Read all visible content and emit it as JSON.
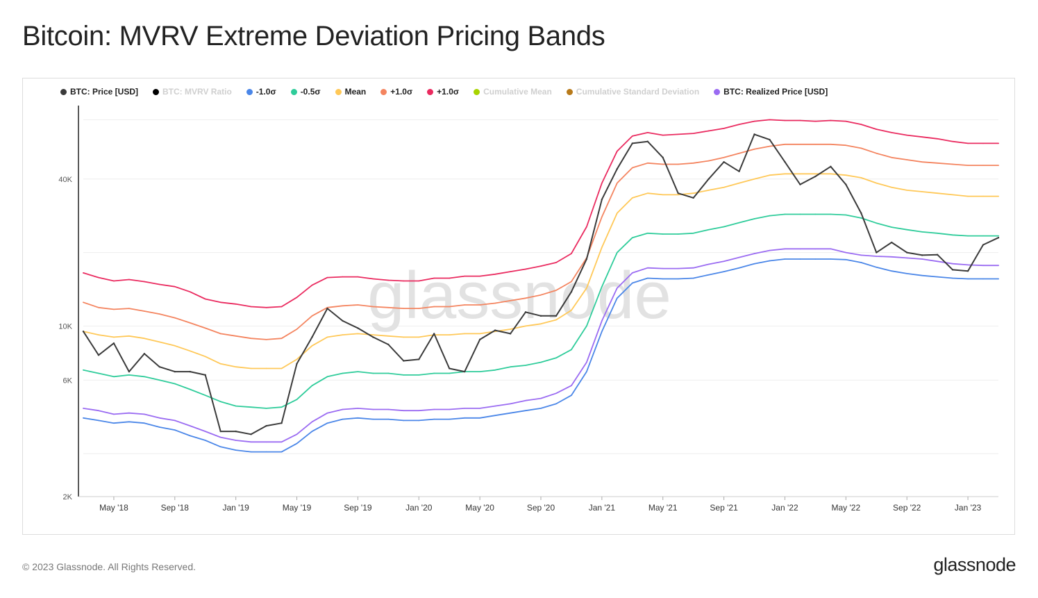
{
  "title": "Bitcoin: MVRV Extreme Deviation Pricing Bands",
  "footer": "© 2023 Glassnode. All Rights Reserved.",
  "brand": "glassnode",
  "watermark": "glassnode",
  "legend": [
    {
      "label": "BTC: Price [USD]",
      "color": "#3a3a3a",
      "active": true
    },
    {
      "label": "BTC: MVRV Ratio",
      "color": "#000000",
      "active": false
    },
    {
      "label": "-1.0σ",
      "color": "#4a86e8",
      "active": true
    },
    {
      "label": "-0.5σ",
      "color": "#2ecc9a",
      "active": true
    },
    {
      "label": "Mean",
      "color": "#ffc857",
      "active": true
    },
    {
      "label": "+1.0σ",
      "color": "#f4845f",
      "active": true
    },
    {
      "label": "+1.0σ",
      "color": "#ea2a5f",
      "active": true
    },
    {
      "label": "Cumulative Mean",
      "color": "#a8d400",
      "active": false
    },
    {
      "label": "Cumulative Standard Deviation",
      "color": "#b87a1a",
      "active": false
    },
    {
      "label": "BTC: Realized Price [USD]",
      "color": "#9a6bf2",
      "active": true
    }
  ],
  "chart_data": {
    "type": "line",
    "title": "Bitcoin: MVRV Extreme Deviation Pricing Bands",
    "yscale": "log",
    "ylim": [
      2000,
      80000
    ],
    "xlim": [
      "2018-03",
      "2023-03"
    ],
    "y_ticks": [
      {
        "value": 2000,
        "label": "2K"
      },
      {
        "value": 6000,
        "label": "6K"
      },
      {
        "value": 10000,
        "label": "10K"
      },
      {
        "value": 40000,
        "label": "40K"
      }
    ],
    "x": [
      "Mar '18",
      "Apr '18",
      "May '18",
      "Jun '18",
      "Jul '18",
      "Aug '18",
      "Sep '18",
      "Oct '18",
      "Nov '18",
      "Dec '18",
      "Jan '19",
      "Feb '19",
      "Mar '19",
      "Apr '19",
      "May '19",
      "Jun '19",
      "Jul '19",
      "Aug '19",
      "Sep '19",
      "Oct '19",
      "Nov '19",
      "Dec '19",
      "Jan '20",
      "Feb '20",
      "Mar '20",
      "Apr '20",
      "May '20",
      "Jun '20",
      "Jul '20",
      "Aug '20",
      "Sep '20",
      "Oct '20",
      "Nov '20",
      "Dec '20",
      "Jan '21",
      "Feb '21",
      "Mar '21",
      "Apr '21",
      "May '21",
      "Jun '21",
      "Jul '21",
      "Aug '21",
      "Sep '21",
      "Oct '21",
      "Nov '21",
      "Dec '21",
      "Jan '22",
      "Feb '22",
      "Mar '22",
      "Apr '22",
      "May '22",
      "Jun '22",
      "Jul '22",
      "Aug '22",
      "Sep '22",
      "Oct '22",
      "Nov '22",
      "Dec '22",
      "Jan '23",
      "Feb '23",
      "Mar '23"
    ],
    "x_ticks": [
      {
        "index": 2,
        "label": "May '18"
      },
      {
        "index": 6,
        "label": "Sep '18"
      },
      {
        "index": 10,
        "label": "Jan '19"
      },
      {
        "index": 14,
        "label": "May '19"
      },
      {
        "index": 18,
        "label": "Sep '19"
      },
      {
        "index": 22,
        "label": "Jan '20"
      },
      {
        "index": 26,
        "label": "May '20"
      },
      {
        "index": 30,
        "label": "Sep '20"
      },
      {
        "index": 34,
        "label": "Jan '21"
      },
      {
        "index": 38,
        "label": "May '21"
      },
      {
        "index": 42,
        "label": "Sep '21"
      },
      {
        "index": 46,
        "label": "Jan '22"
      },
      {
        "index": 50,
        "label": "May '22"
      },
      {
        "index": 54,
        "label": "Sep '22"
      },
      {
        "index": 58,
        "label": "Jan '23"
      }
    ],
    "series": [
      {
        "name": "+1.0σ",
        "color": "#ea2a5f",
        "values": [
          16500,
          15800,
          15300,
          15500,
          15200,
          14800,
          14500,
          13800,
          12900,
          12500,
          12300,
          12000,
          11900,
          12000,
          13100,
          14700,
          15800,
          15900,
          15900,
          15600,
          15400,
          15300,
          15300,
          15700,
          15700,
          16000,
          16000,
          16300,
          16700,
          17100,
          17600,
          18200,
          19800,
          25500,
          38500,
          52000,
          60000,
          62000,
          60500,
          61000,
          61500,
          63000,
          64500,
          67000,
          69000,
          70000,
          69500,
          69500,
          69000,
          69500,
          69000,
          67000,
          64000,
          62000,
          60500,
          59500,
          58500,
          57000,
          56000,
          56000,
          56000
        ]
      },
      {
        "name": "+1.0σ",
        "color": "#f4845f",
        "values": [
          12500,
          11900,
          11700,
          11800,
          11500,
          11200,
          10800,
          10300,
          9800,
          9300,
          9100,
          8900,
          8800,
          8900,
          9700,
          11000,
          11900,
          12100,
          12200,
          12000,
          11900,
          11800,
          11800,
          12000,
          12000,
          12200,
          12200,
          12400,
          12700,
          13000,
          13400,
          14000,
          15200,
          19000,
          28000,
          38500,
          44500,
          46500,
          46000,
          46000,
          46500,
          47500,
          49000,
          51000,
          53000,
          54500,
          55500,
          55500,
          55500,
          55500,
          55000,
          53500,
          51000,
          49000,
          48000,
          47000,
          46500,
          46000,
          45500,
          45500,
          45500
        ]
      },
      {
        "name": "Mean",
        "color": "#ffc857",
        "values": [
          9500,
          9200,
          9000,
          9100,
          8900,
          8600,
          8300,
          7900,
          7500,
          7000,
          6800,
          6700,
          6700,
          6700,
          7300,
          8300,
          9000,
          9200,
          9300,
          9200,
          9100,
          9000,
          9000,
          9200,
          9200,
          9300,
          9300,
          9500,
          9700,
          10000,
          10200,
          10600,
          11600,
          14300,
          21000,
          29000,
          33500,
          35000,
          34500,
          34500,
          35000,
          36000,
          37000,
          38500,
          40000,
          41500,
          42000,
          42000,
          42000,
          42000,
          41500,
          40500,
          38500,
          37000,
          36000,
          35500,
          35000,
          34500,
          34000,
          34000,
          34000
        ]
      },
      {
        "name": "-0.5σ",
        "color": "#2ecc9a",
        "values": [
          6600,
          6400,
          6200,
          6300,
          6200,
          6000,
          5800,
          5500,
          5200,
          4900,
          4700,
          4650,
          4600,
          4650,
          5000,
          5700,
          6200,
          6400,
          6500,
          6400,
          6400,
          6300,
          6300,
          6400,
          6400,
          6500,
          6500,
          6600,
          6800,
          6900,
          7100,
          7400,
          8000,
          10000,
          14500,
          20000,
          23000,
          24000,
          23800,
          23800,
          24000,
          24800,
          25500,
          26500,
          27500,
          28300,
          28700,
          28700,
          28700,
          28700,
          28500,
          27700,
          26400,
          25400,
          24800,
          24300,
          24000,
          23600,
          23400,
          23400,
          23400
        ]
      },
      {
        "name": "-1.0σ",
        "color": "#4a86e8",
        "values": [
          4200,
          4100,
          4000,
          4050,
          4000,
          3850,
          3750,
          3550,
          3400,
          3200,
          3100,
          3050,
          3050,
          3050,
          3300,
          3700,
          4000,
          4150,
          4200,
          4150,
          4150,
          4100,
          4100,
          4150,
          4150,
          4200,
          4200,
          4300,
          4400,
          4500,
          4600,
          4800,
          5200,
          6500,
          9500,
          13000,
          15000,
          15700,
          15600,
          15600,
          15700,
          16200,
          16700,
          17300,
          18000,
          18500,
          18800,
          18800,
          18800,
          18800,
          18700,
          18200,
          17400,
          16800,
          16400,
          16100,
          15900,
          15700,
          15600,
          15600,
          15600
        ]
      },
      {
        "name": "BTC: Realized Price [USD]",
        "color": "#9a6bf2",
        "values": [
          4600,
          4500,
          4350,
          4400,
          4350,
          4200,
          4100,
          3900,
          3700,
          3500,
          3400,
          3350,
          3350,
          3350,
          3600,
          4050,
          4400,
          4550,
          4600,
          4550,
          4550,
          4500,
          4500,
          4550,
          4550,
          4600,
          4600,
          4700,
          4800,
          4950,
          5050,
          5300,
          5700,
          7100,
          10500,
          14300,
          16500,
          17300,
          17200,
          17200,
          17300,
          17900,
          18400,
          19100,
          19800,
          20400,
          20700,
          20700,
          20700,
          20700,
          20000,
          19500,
          19300,
          19200,
          19000,
          18800,
          18400,
          18000,
          17800,
          17700,
          17700
        ]
      },
      {
        "name": "BTC: Price [USD]",
        "color": "#3a3a3a",
        "values": [
          9500,
          7600,
          8500,
          6500,
          7700,
          6800,
          6500,
          6500,
          6300,
          3700,
          3700,
          3600,
          3900,
          4000,
          7000,
          9000,
          11800,
          10500,
          9800,
          9000,
          8400,
          7200,
          7300,
          9300,
          6700,
          6500,
          8800,
          9600,
          9300,
          11400,
          11000,
          11000,
          13800,
          18800,
          33000,
          44000,
          56000,
          57000,
          49000,
          35000,
          33500,
          40000,
          47000,
          43000,
          61000,
          58000,
          47000,
          38000,
          41000,
          45000,
          38000,
          29000,
          20000,
          22000,
          20000,
          19500,
          19600,
          17000,
          16800,
          21500,
          23000
        ]
      }
    ],
    "grid": true,
    "legend_position": "top"
  }
}
